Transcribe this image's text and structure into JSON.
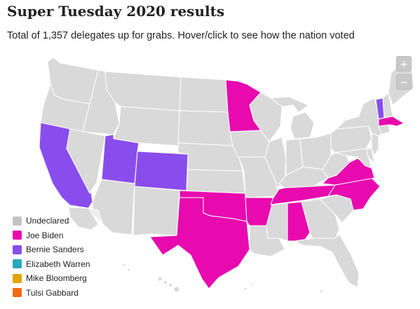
{
  "header": {
    "title": "Super Tuesday 2020 results",
    "subtitle": "Total of 1,357 delegates up for grabs. Hover/click to see how the nation voted"
  },
  "zoom": {
    "in_label": "+",
    "out_label": "−"
  },
  "colors": {
    "undeclared": "#d9d9d9",
    "biden": "#e80aae",
    "sanders": "#8a4ded",
    "warren": "#2aa7b8",
    "bloomberg": "#e2a400",
    "gabbard": "#f26a12",
    "sanders_light": "#d9b9f2"
  },
  "legend": [
    {
      "key": "undeclared",
      "label": "Undeclared",
      "color": "#c4c4c4"
    },
    {
      "key": "biden",
      "label": "Joe Biden",
      "color": "#e80aae"
    },
    {
      "key": "sanders",
      "label": "Bernie Sanders",
      "color": "#8a4ded"
    },
    {
      "key": "warren",
      "label": "Elizabeth Warren",
      "color": "#2aa7b8"
    },
    {
      "key": "bloomberg",
      "label": "Mike Bloomberg",
      "color": "#e2a400"
    },
    {
      "key": "gabbard",
      "label": "Tulsi Gabbard",
      "color": "#f26a12"
    }
  ],
  "states": {
    "WA": "undeclared",
    "OR": "undeclared",
    "CA": "sanders",
    "NV": "undeclared",
    "ID": "undeclared",
    "MT": "undeclared",
    "WY": "undeclared",
    "UT": "sanders",
    "CO": "sanders",
    "AZ": "undeclared",
    "NM": "undeclared",
    "ND": "undeclared",
    "SD": "undeclared",
    "NE": "undeclared",
    "KS": "undeclared",
    "OK": "biden",
    "TX": "biden",
    "MN": "biden",
    "IA": "undeclared",
    "MO": "undeclared",
    "AR": "biden",
    "LA": "undeclared",
    "WI": "undeclared",
    "IL": "undeclared",
    "MI": "undeclared",
    "IN": "undeclared",
    "OH": "undeclared",
    "KY": "undeclared",
    "TN": "biden",
    "MS": "undeclared",
    "AL": "biden",
    "GA": "undeclared",
    "FL": "undeclared",
    "SC": "undeclared",
    "NC": "biden",
    "VA": "biden",
    "WV": "undeclared",
    "PA": "undeclared",
    "NY": "undeclared",
    "VT": "sanders",
    "NH": "undeclared",
    "ME": "undeclared",
    "MA": "biden",
    "CT": "undeclared",
    "NJ": "undeclared",
    "DE": "undeclared",
    "MD": "undeclared",
    "AK": "undeclared",
    "HI": "undeclared"
  }
}
